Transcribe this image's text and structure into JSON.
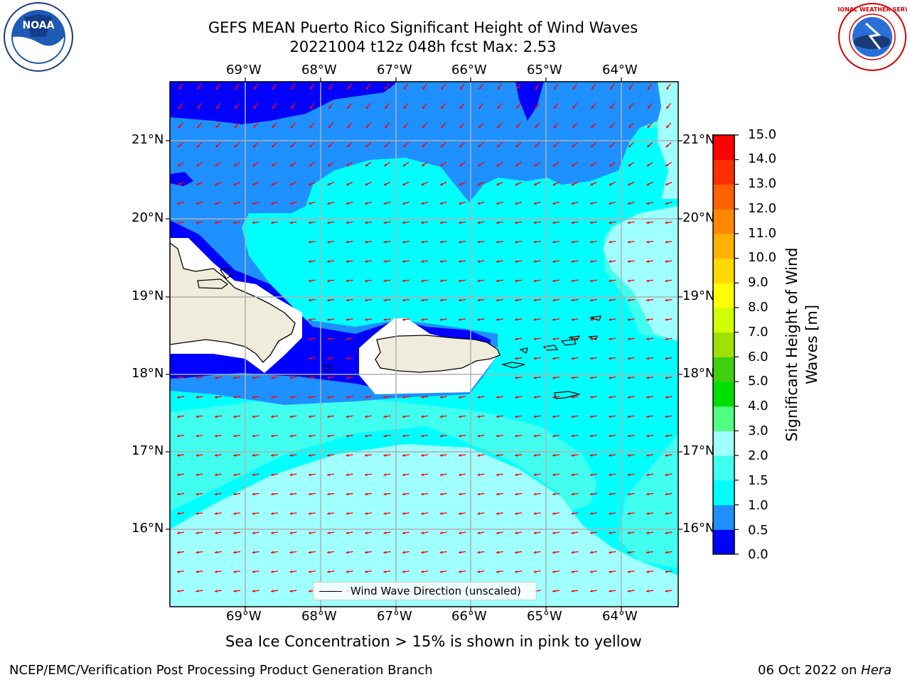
{
  "header": {
    "title_line1": "GEFS MEAN Puerto Rico Significant Height of Wind Waves",
    "title_line2": "20221004 t12z 048h fcst   Max: 2.53"
  },
  "map": {
    "lon_labels": [
      "69°W",
      "68°W",
      "67°W",
      "66°W",
      "65°W",
      "64°W"
    ],
    "lat_labels": [
      "21°N",
      "20°N",
      "19°N",
      "18°N",
      "17°N",
      "16°N"
    ],
    "legend_label": "Wind Wave Direction (unscaled)",
    "arrow_color": "#ff0000",
    "land_color": "#efecdc"
  },
  "colorbar": {
    "title": "Significant Height of Wind Waves [m]",
    "title_line1": "Significant Height of Wind",
    "title_line2": "Waves [m]",
    "ticks": [
      "0.0",
      "0.5",
      "1.0",
      "1.5",
      "2.0",
      "3.0",
      "4.0",
      "5.0",
      "6.0",
      "7.0",
      "8.0",
      "9.0",
      "10.0",
      "11.0",
      "12.0",
      "13.0",
      "14.0",
      "15.0"
    ],
    "colors": [
      "#0000ff",
      "#1e90ff",
      "#00ffff",
      "#40ffee",
      "#a0ffff",
      "#50ff80",
      "#00e000",
      "#40d010",
      "#a0e000",
      "#d0ff00",
      "#ffff00",
      "#ffd800",
      "#ffb000",
      "#ff8800",
      "#ff6000",
      "#ff3000",
      "#ff0000"
    ]
  },
  "footer": {
    "note": "Sea Ice Concentration > 15% is shown in pink to yellow",
    "branch": "NCEP/EMC/Verification Post Processing Product Generation Branch",
    "date": "06 Oct 2022 on ",
    "machine": "Hera"
  },
  "logos": {
    "noaa_text": "NOAA",
    "nws_text": "NATIONAL WEATHER SERVICE"
  }
}
